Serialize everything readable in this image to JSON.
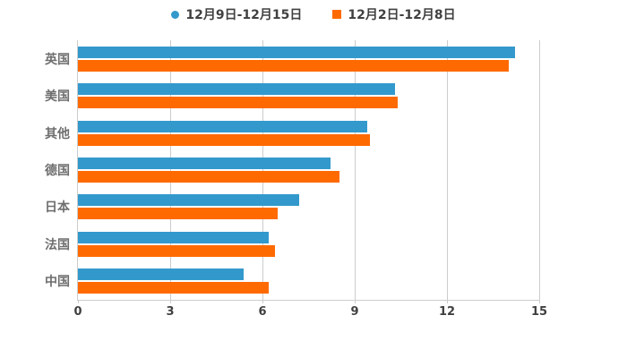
{
  "chart_data": {
    "type": "bar",
    "orientation": "horizontal",
    "title": "",
    "categories": [
      "英国",
      "美国",
      "其他",
      "德国",
      "日本",
      "法国",
      "中国"
    ],
    "series": [
      {
        "name": "12月9日-12月15日",
        "color": "#3399cc",
        "marker": "circle",
        "values": [
          14.2,
          10.3,
          9.4,
          8.2,
          7.2,
          6.2,
          5.4
        ]
      },
      {
        "name": "12月2日-12月8日",
        "color": "#ff6a00",
        "marker": "square",
        "values": [
          14.0,
          10.4,
          9.5,
          8.5,
          6.5,
          6.4,
          6.2
        ]
      }
    ],
    "xlim": [
      0,
      15
    ],
    "xticks": [
      0,
      3,
      6,
      9,
      12,
      15
    ],
    "grid": "vertical-only",
    "legend_position": "top-center"
  },
  "colors": {
    "background": "#ffffff",
    "gridline": "#cccccc",
    "axis_text": "#404040",
    "category_text": "#6e6e6e",
    "legend_text": "#404040",
    "series_blue": "#3399cc",
    "series_orange": "#ff6a00"
  }
}
